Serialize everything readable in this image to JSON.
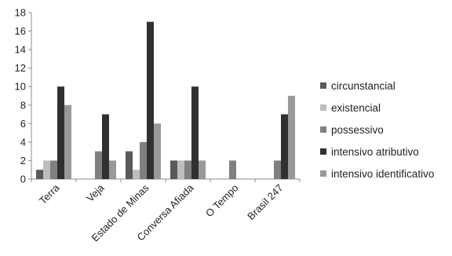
{
  "chart_data": {
    "type": "bar",
    "categories": [
      "Terra",
      "Veja",
      "Estado de Minas",
      "Conversa Afiada",
      "O Tempo",
      "Brasil 247"
    ],
    "series": [
      {
        "name": "circunstancial",
        "values": [
          1,
          0,
          3,
          2,
          0,
          0
        ]
      },
      {
        "name": "existencial",
        "values": [
          2,
          0,
          1,
          2,
          0,
          0
        ]
      },
      {
        "name": "possessivo",
        "values": [
          2,
          3,
          4,
          2,
          2,
          2
        ]
      },
      {
        "name": "intensivo atributivo",
        "values": [
          10,
          7,
          17,
          10,
          0,
          7
        ]
      },
      {
        "name": "intensivo identificativo",
        "values": [
          8,
          2,
          6,
          2,
          0,
          9
        ]
      }
    ],
    "colors": [
      "#595959",
      "#bdbdbd",
      "#808080",
      "#303030",
      "#999999"
    ],
    "ylim": [
      0,
      18
    ],
    "yticks": [
      "0",
      "2",
      "4",
      "6",
      "8",
      "10",
      "12",
      "14",
      "16",
      "18"
    ],
    "grid": false,
    "legend_position": "right"
  }
}
